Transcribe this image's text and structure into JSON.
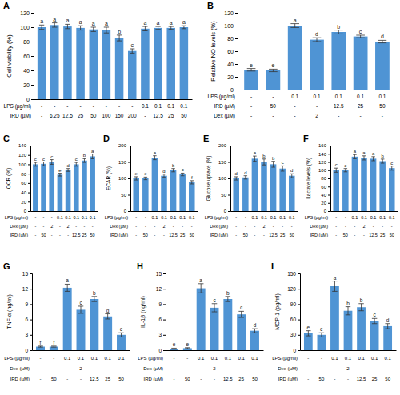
{
  "chart_data": [
    {
      "type": "bar",
      "title": "A",
      "y_label": "Cell viability (%)",
      "color": "#4f94d4",
      "grid": false,
      "tick_labels": "y",
      "categories": [
        null,
        null,
        null,
        null,
        null,
        null,
        null,
        null,
        null,
        null,
        null,
        null
      ],
      "values": [
        100,
        103,
        101,
        99,
        97,
        96,
        85,
        67,
        98,
        99,
        99,
        100
      ],
      "errors": [
        3,
        3,
        3,
        3,
        3,
        4,
        4,
        3,
        3,
        2,
        2,
        2
      ],
      "annotations": [
        "a",
        "a",
        "a",
        "a",
        "a",
        "a",
        "b",
        "c",
        "a",
        "a",
        "a",
        "a"
      ],
      "treatments": [
        {
          "label": "LPS (µg/ml)",
          "values": [
            "-",
            "-",
            "-",
            "-",
            "-",
            "-",
            "-",
            "-",
            "0.1",
            "0.1",
            "0.1",
            "0.1"
          ]
        },
        {
          "label": "IRD (µM)",
          "values": [
            "-",
            "6.25",
            "12.5",
            "25",
            "50",
            "100",
            "150",
            "200",
            "-",
            "12.5",
            "25",
            "50"
          ]
        }
      ],
      "ylim": [
        0,
        120
      ],
      "yticks": [
        0,
        20,
        40,
        60,
        80,
        100,
        120
      ]
    },
    {
      "type": "bar",
      "title": "B",
      "y_label": "Relative NO levels (%)",
      "color": "#4f94d4",
      "grid": false,
      "tick_labels": "y",
      "categories": [
        null,
        null,
        null,
        null,
        null,
        null,
        null
      ],
      "values": [
        31,
        30,
        100,
        78,
        90,
        83,
        75
      ],
      "errors": [
        2,
        2,
        3,
        3,
        3,
        2,
        2
      ],
      "annotations": [
        "e",
        "e",
        "a",
        "d",
        "b",
        "c",
        "d"
      ],
      "treatments": [
        {
          "label": "LPS (µg/ml)",
          "values": [
            "-",
            "-",
            "0.1",
            "0.1",
            "0.1",
            "0.1",
            "0.1"
          ]
        },
        {
          "label": "IRD (µM)",
          "values": [
            "-",
            "50",
            "-",
            "-",
            "12.5",
            "25",
            "50"
          ]
        },
        {
          "label": "Dex (µM)",
          "values": [
            "-",
            "-",
            "-",
            "2",
            "-",
            "-",
            "-"
          ]
        }
      ],
      "ylim": [
        0,
        120
      ],
      "yticks": [
        0,
        20,
        40,
        60,
        80,
        100,
        120
      ]
    },
    {
      "type": "bar",
      "title": "C",
      "y_label": "OCR (%)",
      "color": "#4f94d4",
      "grid": false,
      "tick_labels": "y",
      "categories": [
        null,
        null,
        null,
        null,
        null,
        null,
        null,
        null
      ],
      "values": [
        100,
        101,
        105,
        78,
        88,
        100,
        108,
        117
      ],
      "errors": [
        4,
        4,
        5,
        3,
        3,
        4,
        4,
        5
      ],
      "annotations": [
        "c",
        "c",
        "c",
        "e",
        "d",
        "c",
        "b",
        "a"
      ],
      "treatments": [
        {
          "label": "LPS (µg/ml)",
          "values": [
            "-",
            "-",
            "-",
            "0.1",
            "0.1",
            "0.1",
            "0.1",
            "0.1"
          ]
        },
        {
          "label": "Dex (µM)",
          "values": [
            "-",
            "-",
            "2",
            "-",
            "2",
            "-",
            "-",
            "-"
          ]
        },
        {
          "label": "IRD (µM)",
          "values": [
            "-",
            "50",
            "-",
            "-",
            "-",
            "12.5",
            "25",
            "50"
          ]
        }
      ],
      "ylim": [
        0,
        140
      ],
      "yticks": [
        0,
        20,
        40,
        60,
        80,
        100,
        120,
        140
      ]
    },
    {
      "type": "bar",
      "title": "D",
      "y_label": "ECAR (%)",
      "color": "#4f94d4",
      "grid": false,
      "tick_labels": "y",
      "categories": [
        null,
        null,
        null,
        null,
        null,
        null,
        null
      ],
      "values": [
        100,
        100,
        163,
        108,
        125,
        112,
        88
      ],
      "errors": [
        5,
        4,
        6,
        5,
        5,
        4,
        5
      ],
      "annotations": [
        "e",
        "e",
        "a",
        "d",
        "b",
        "c",
        "f"
      ],
      "treatments": [
        {
          "label": "LPS (µg/ml)",
          "values": [
            "-",
            "-",
            "0.1",
            "0.1",
            "0.1",
            "0.1",
            "0.1"
          ]
        },
        {
          "label": "Dex (µM)",
          "values": [
            "-",
            "-",
            "-",
            "2",
            "-",
            "-",
            "-"
          ]
        },
        {
          "label": "IRD (µM)",
          "values": [
            "-",
            "50",
            "-",
            "-",
            "12.5",
            "25",
            "50"
          ]
        }
      ],
      "ylim": [
        0,
        200
      ],
      "yticks": [
        0,
        50,
        100,
        150,
        200
      ]
    },
    {
      "type": "bar",
      "title": "E",
      "y_label": "Glucose uptake (%)",
      "color": "#4f94d4",
      "grid": false,
      "tick_labels": "y",
      "categories": [
        null,
        null,
        null,
        null,
        null,
        null,
        null
      ],
      "values": [
        100,
        103,
        160,
        150,
        143,
        130,
        108
      ],
      "errors": [
        5,
        5,
        8,
        9,
        9,
        8,
        6
      ],
      "annotations": [
        "d",
        "d",
        "a",
        "b",
        "b",
        "c",
        "d"
      ],
      "treatments": [
        {
          "label": "LPS (µg/ml)",
          "values": [
            "-",
            "-",
            "0.1",
            "0.1",
            "0.1",
            "0.1",
            "0.1"
          ]
        },
        {
          "label": "Dex (µM)",
          "values": [
            "-",
            "-",
            "-",
            "2",
            "-",
            "-",
            "-"
          ]
        },
        {
          "label": "IRD (µM)",
          "values": [
            "-",
            "50",
            "-",
            "-",
            "12.5",
            "25",
            "50"
          ]
        }
      ],
      "ylim": [
        0,
        200
      ],
      "yticks": [
        0,
        50,
        100,
        150,
        200
      ]
    },
    {
      "type": "bar",
      "title": "F",
      "y_label": "Lactate levels (%)",
      "color": "#4f94d4",
      "grid": false,
      "tick_labels": "y",
      "categories": [
        null,
        null,
        null,
        null,
        null,
        null,
        null
      ],
      "values": [
        100,
        100,
        133,
        130,
        128,
        122,
        105
      ],
      "errors": [
        5,
        4,
        5,
        5,
        5,
        5,
        5
      ],
      "annotations": [
        "c",
        "c",
        "a",
        "a",
        "a",
        "b",
        "c"
      ],
      "treatments": [
        {
          "label": "LPS (µg/ml)",
          "values": [
            "-",
            "-",
            "0.1",
            "0.1",
            "0.1",
            "0.1",
            "0.1"
          ]
        },
        {
          "label": "Dex (µM)",
          "values": [
            "-",
            "-",
            "-",
            "2",
            "-",
            "-",
            "-"
          ]
        },
        {
          "label": "IRD (µM)",
          "values": [
            "-",
            "50",
            "-",
            "-",
            "12.5",
            "25",
            "50"
          ]
        }
      ],
      "ylim": [
        0,
        160
      ],
      "yticks": [
        0,
        20,
        40,
        60,
        80,
        100,
        120,
        140,
        160
      ]
    },
    {
      "type": "bar",
      "title": "G",
      "y_label": "TNF-α (ng/ml)",
      "color": "#4f94d4",
      "grid": false,
      "tick_labels": "y",
      "categories": [
        null,
        null,
        null,
        null,
        null,
        null,
        null
      ],
      "values": [
        0.7,
        0.7,
        12.2,
        7.9,
        10.0,
        6.6,
        3.0
      ],
      "errors": [
        0.1,
        0.1,
        0.7,
        0.7,
        0.5,
        0.5,
        0.4
      ],
      "annotations": [
        "f",
        "f",
        "a",
        "c",
        "b",
        "d",
        "e"
      ],
      "treatments": [
        {
          "label": "LPS (µg/ml)",
          "values": [
            "-",
            "-",
            "0.1",
            "0.1",
            "0.1",
            "0.1",
            "0.1"
          ]
        },
        {
          "label": "Dex (µM)",
          "values": [
            "-",
            "-",
            "-",
            "2",
            "-",
            "-",
            "-"
          ]
        },
        {
          "label": "IRD (µM)",
          "values": [
            "-",
            "50",
            "-",
            "-",
            "12.5",
            "25",
            "50"
          ]
        }
      ],
      "ylim": [
        0,
        15
      ],
      "yticks": [
        0,
        3,
        6,
        9,
        12,
        15
      ]
    },
    {
      "type": "bar",
      "title": "H",
      "y_label": "IL-1β (ng/ml)",
      "color": "#4f94d4",
      "grid": false,
      "tick_labels": "y",
      "categories": [
        null,
        null,
        null,
        null,
        null,
        null,
        null
      ],
      "values": [
        0.3,
        0.4,
        12.1,
        8.3,
        10.0,
        7.0,
        3.8
      ],
      "errors": [
        0.1,
        0.1,
        0.9,
        0.8,
        0.5,
        0.6,
        0.4
      ],
      "annotations": [
        "e",
        "e",
        "a",
        "c",
        "b",
        "c",
        "d"
      ],
      "treatments": [
        {
          "label": "LPS (µg/ml)",
          "values": [
            "-",
            "-",
            "0.1",
            "0.1",
            "0.1",
            "0.1",
            "0.1"
          ]
        },
        {
          "label": "Dex (µM)",
          "values": [
            "-",
            "-",
            "-",
            "2",
            "-",
            "-",
            "-"
          ]
        },
        {
          "label": "IRD (µM)",
          "values": [
            "-",
            "50",
            "-",
            "-",
            "12.5",
            "25",
            "50"
          ]
        }
      ],
      "ylim": [
        0,
        15
      ],
      "yticks": [
        0,
        3,
        6,
        9,
        12,
        15
      ]
    },
    {
      "type": "bar",
      "title": "I",
      "y_label": "MCP-1 (pg/ml)",
      "color": "#4f94d4",
      "grid": false,
      "tick_labels": "y",
      "categories": [
        null,
        null,
        null,
        null,
        null,
        null,
        null
      ],
      "values": [
        33,
        30,
        125,
        77,
        84,
        57,
        47
      ],
      "errors": [
        5,
        4,
        10,
        8,
        7,
        5,
        5
      ],
      "annotations": [
        "e",
        "e",
        "a",
        "b",
        "b",
        "c",
        "d"
      ],
      "treatments": [
        {
          "label": "LPS (µg/ml)",
          "values": [
            "-",
            "-",
            "0.1",
            "0.1",
            "0.1",
            "0.1",
            "0.1"
          ]
        },
        {
          "label": "Dex (µM)",
          "values": [
            "-",
            "-",
            "-",
            "2",
            "-",
            "-",
            "-"
          ]
        },
        {
          "label": "IRD (µM)",
          "values": [
            "-",
            "50",
            "-",
            "-",
            "12.5",
            "25",
            "50"
          ]
        }
      ],
      "ylim": [
        0,
        150
      ],
      "yticks": [
        0,
        30,
        60,
        90,
        120,
        150
      ]
    }
  ]
}
